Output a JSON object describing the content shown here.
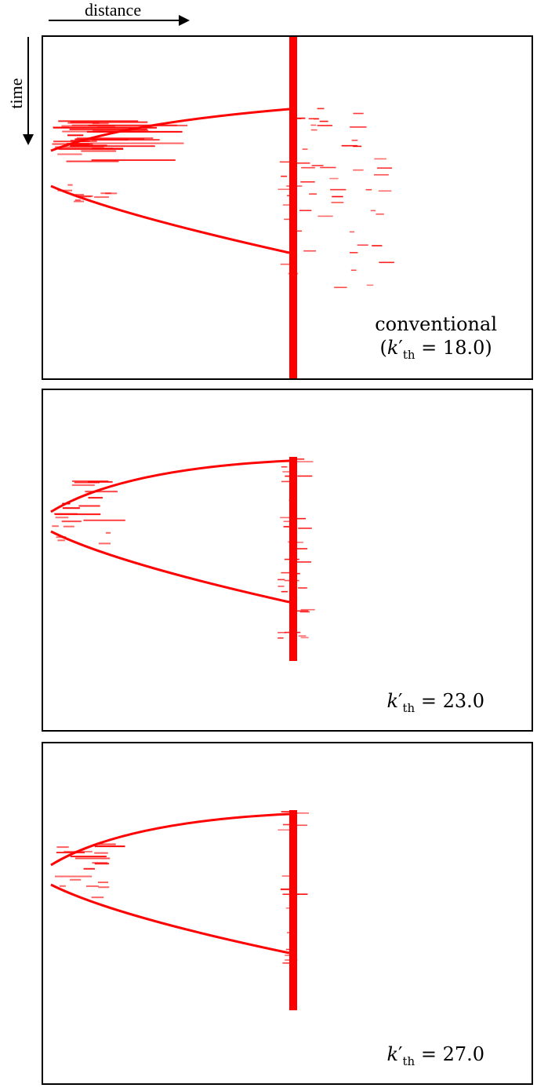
{
  "axes": {
    "distance_label": "distance",
    "time_label": "time"
  },
  "colors": {
    "trace": "#ff0000",
    "frame": "#000000"
  },
  "panels": [
    {
      "caption_word": "conventional",
      "caption_open": "(",
      "caption_close": ")",
      "k_symbol": "k",
      "k_prime": "′",
      "k_sub": "th",
      "equals": " = ",
      "k_value": "18.0"
    },
    {
      "caption_word": "",
      "caption_open": "",
      "caption_close": "",
      "k_symbol": "k",
      "k_prime": "′",
      "k_sub": "th",
      "equals": " = ",
      "k_value": "23.0"
    },
    {
      "caption_word": "",
      "caption_open": "",
      "caption_close": "",
      "k_symbol": "k",
      "k_prime": "′",
      "k_sub": "th",
      "equals": " = ",
      "k_value": "27.0"
    }
  ]
}
